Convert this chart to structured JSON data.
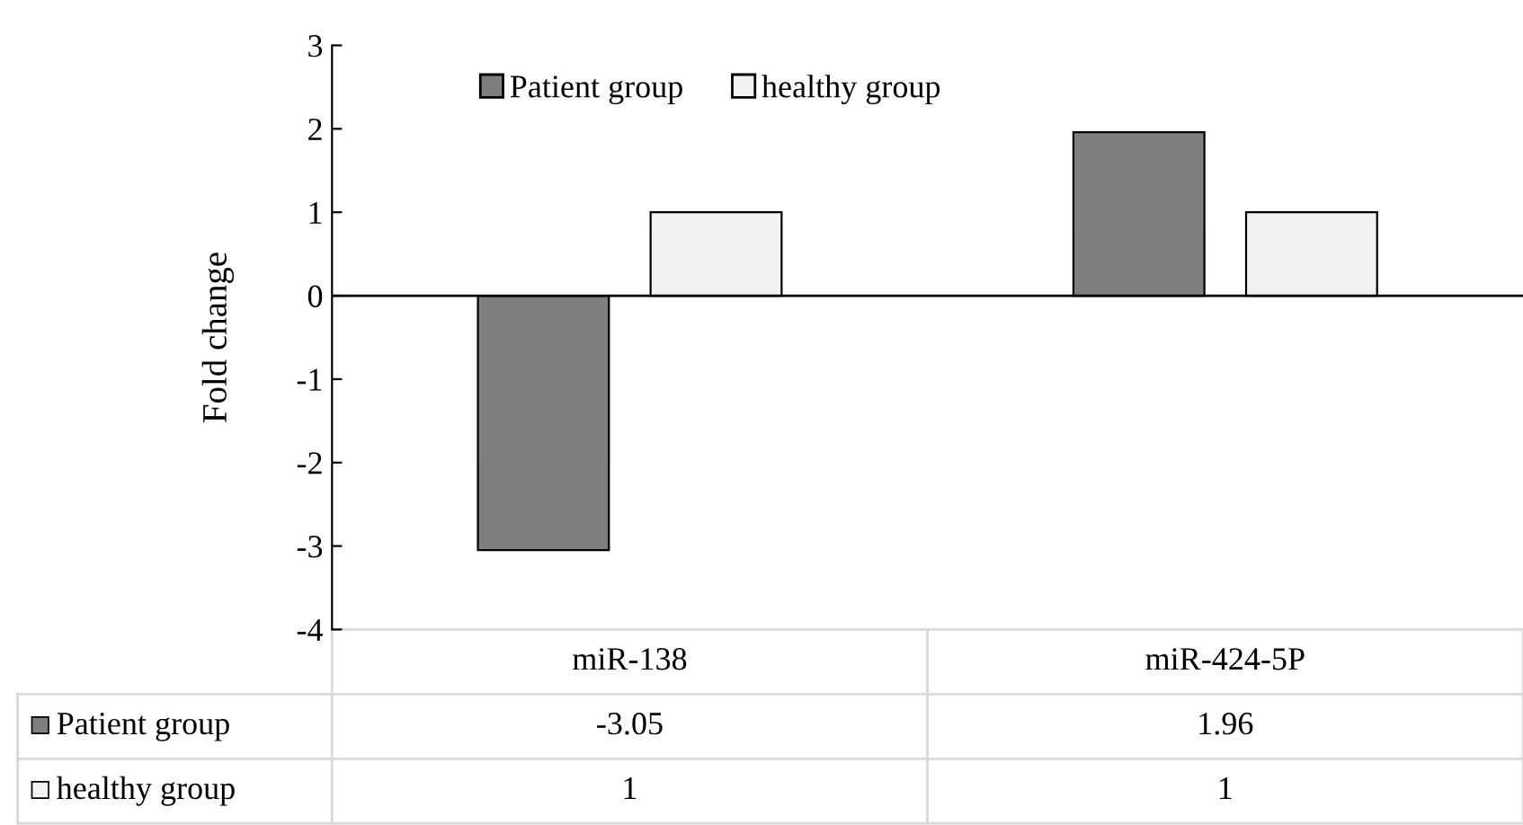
{
  "chart_data": {
    "type": "bar",
    "ylabel": "Fold change",
    "categories": [
      "miR-138",
      "miR-424-5P"
    ],
    "series": [
      {
        "name": "Patient group",
        "color": "#7f7f7f",
        "values": [
          -3.05,
          1.96
        ]
      },
      {
        "name": "healthy group",
        "color": "#f2f2f2",
        "values": [
          1,
          1
        ]
      }
    ],
    "ylim": [
      -4,
      3
    ],
    "yticks": [
      -4,
      -3,
      -2,
      -1,
      0,
      1,
      2,
      3
    ],
    "legend": "top left",
    "data_labels": true
  }
}
